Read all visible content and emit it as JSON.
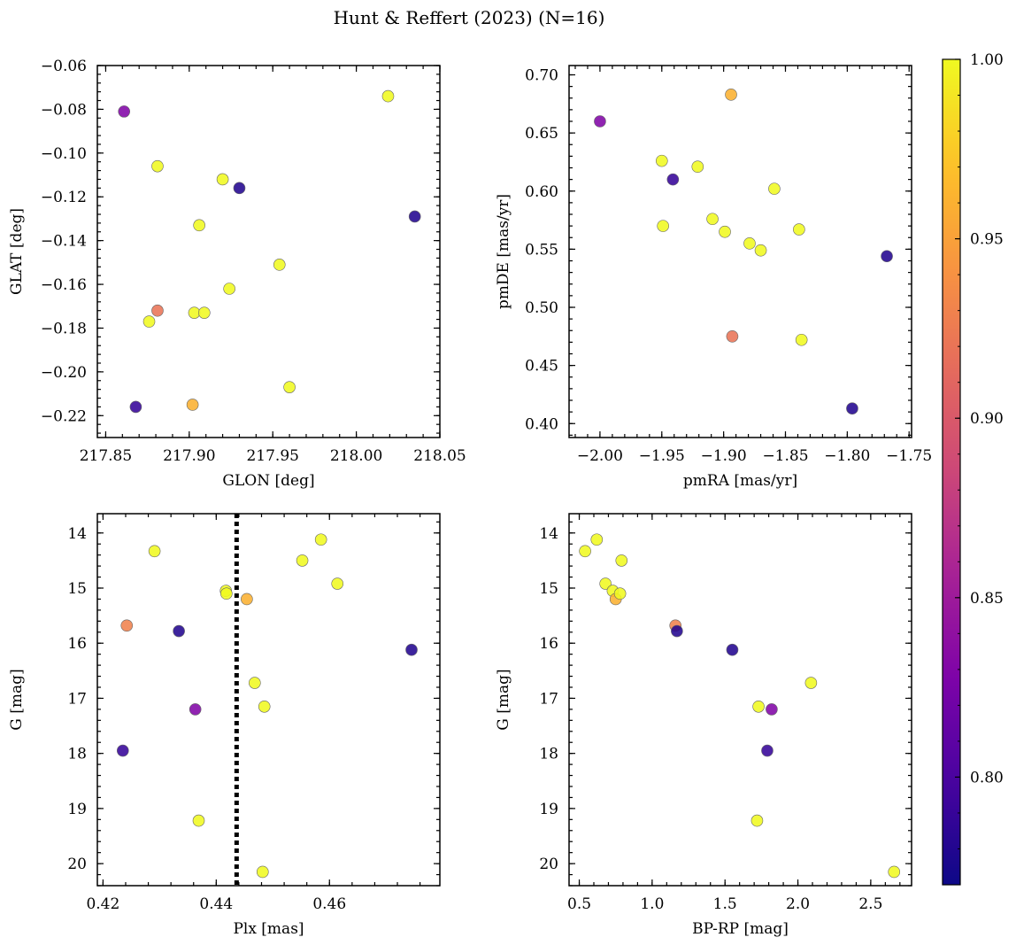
{
  "title": "Hunt & Reffert (2023) (N=16)",
  "colorbar": {
    "range": [
      0.77,
      1.0
    ],
    "ticks": [
      "1.00",
      "0.95",
      "0.90",
      "0.85",
      "0.80"
    ],
    "tick_values": [
      1.0,
      0.95,
      0.9,
      0.85,
      0.8
    ],
    "colormap": "plasma"
  },
  "chart_data": [
    {
      "type": "scatter",
      "xlabel": "GLON [deg]",
      "ylabel": "GLAT [deg]",
      "xlim": [
        217.845,
        218.05
      ],
      "ylim": [
        -0.23,
        -0.06
      ],
      "yinvert": false,
      "xticks": [
        217.85,
        217.9,
        217.95,
        218.0,
        218.05
      ],
      "xtick_labels": [
        "217.85",
        "217.90",
        "217.95",
        "218.00",
        "218.05"
      ],
      "yticks": [
        -0.22,
        -0.2,
        -0.18,
        -0.16,
        -0.14,
        -0.12,
        -0.1,
        -0.08,
        -0.06
      ],
      "ytick_labels": [
        "−0.22",
        "−0.20",
        "−0.18",
        "−0.16",
        "−0.14",
        "−0.12",
        "−0.10",
        "−0.08",
        "−0.06"
      ],
      "x": [
        217.861,
        217.868,
        217.876,
        217.881,
        217.881,
        217.902,
        217.903,
        217.906,
        217.909,
        217.92,
        217.924,
        217.93,
        217.954,
        217.96,
        218.019,
        218.035
      ],
      "y": [
        -0.081,
        -0.216,
        -0.177,
        -0.106,
        -0.172,
        -0.215,
        -0.173,
        -0.133,
        -0.173,
        -0.112,
        -0.162,
        -0.116,
        -0.151,
        -0.207,
        -0.074,
        -0.129
      ],
      "c": [
        0.83,
        0.79,
        1.0,
        1.0,
        0.92,
        0.96,
        1.0,
        1.0,
        1.0,
        1.0,
        1.0,
        0.78,
        1.0,
        1.0,
        1.0,
        0.78
      ]
    },
    {
      "type": "scatter",
      "xlabel": "pmRA [mas/yr]",
      "ylabel": "pmDE [mas/yr]",
      "xlim": [
        -2.025,
        -1.748
      ],
      "ylim": [
        0.388,
        0.708
      ],
      "yinvert": false,
      "xticks": [
        -2.0,
        -1.95,
        -1.9,
        -1.85,
        -1.8,
        -1.75
      ],
      "xtick_labels": [
        "−2.00",
        "−1.95",
        "−1.90",
        "−1.85",
        "−1.80",
        "−1.75"
      ],
      "yticks": [
        0.4,
        0.45,
        0.5,
        0.55,
        0.6,
        0.65,
        0.7
      ],
      "ytick_labels": [
        "0.40",
        "0.45",
        "0.50",
        "0.55",
        "0.60",
        "0.65",
        "0.70"
      ],
      "x": [
        -2.0,
        -1.95,
        -1.949,
        -1.941,
        -1.921,
        -1.909,
        -1.899,
        -1.894,
        -1.893,
        -1.879,
        -1.87,
        -1.859,
        -1.839,
        -1.837,
        -1.796,
        -1.768
      ],
      "y": [
        0.66,
        0.626,
        0.57,
        0.61,
        0.621,
        0.576,
        0.565,
        0.683,
        0.475,
        0.555,
        0.549,
        0.602,
        0.567,
        0.472,
        0.413,
        0.544
      ],
      "c": [
        0.83,
        1.0,
        1.0,
        0.79,
        1.0,
        1.0,
        1.0,
        0.96,
        0.92,
        1.0,
        1.0,
        1.0,
        1.0,
        1.0,
        0.78,
        0.78
      ]
    },
    {
      "type": "scatter",
      "xlabel": "Plx [mas]",
      "ylabel": "G [mag]",
      "xlim": [
        0.419,
        0.4795
      ],
      "ylim": [
        13.65,
        20.4
      ],
      "yinvert": true,
      "xticks": [
        0.42,
        0.44,
        0.46
      ],
      "xtick_labels": [
        "0.42",
        "0.44",
        "0.46"
      ],
      "yticks": [
        14,
        15,
        16,
        17,
        18,
        19,
        20
      ],
      "ytick_labels": [
        "14",
        "15",
        "16",
        "17",
        "18",
        "19",
        "20"
      ],
      "vline": 0.4436,
      "x": [
        0.4235,
        0.4242,
        0.4291,
        0.4334,
        0.4363,
        0.4369,
        0.4417,
        0.4418,
        0.4454,
        0.4468,
        0.4485,
        0.4482,
        0.4552,
        0.4585,
        0.4614,
        0.4745
      ],
      "y": [
        17.95,
        15.68,
        14.33,
        15.78,
        17.2,
        19.22,
        15.05,
        15.1,
        15.2,
        16.72,
        17.15,
        20.15,
        14.5,
        14.12,
        14.92,
        16.12
      ],
      "c": [
        0.79,
        0.93,
        1.0,
        0.78,
        0.83,
        1.0,
        1.0,
        1.0,
        0.96,
        1.0,
        1.0,
        1.0,
        1.0,
        1.0,
        1.0,
        0.78
      ]
    },
    {
      "type": "scatter",
      "xlabel": "BP-RP [mag]",
      "ylabel": "G [mag]",
      "xlim": [
        0.43,
        2.78
      ],
      "ylim": [
        13.65,
        20.4
      ],
      "yinvert": true,
      "xticks": [
        0.5,
        1.0,
        1.5,
        2.0,
        2.5
      ],
      "xtick_labels": [
        "0.5",
        "1.0",
        "1.5",
        "2.0",
        "2.5"
      ],
      "yticks": [
        14,
        15,
        16,
        17,
        18,
        19,
        20
      ],
      "ytick_labels": [
        "14",
        "15",
        "16",
        "17",
        "18",
        "19",
        "20"
      ],
      "x": [
        0.54,
        0.62,
        0.68,
        0.73,
        0.75,
        0.78,
        0.79,
        1.16,
        1.17,
        1.55,
        1.73,
        1.72,
        1.79,
        1.82,
        2.09,
        2.66
      ],
      "y": [
        14.33,
        14.12,
        14.92,
        15.05,
        15.2,
        15.1,
        14.5,
        15.68,
        15.78,
        16.12,
        17.15,
        19.22,
        17.95,
        17.2,
        16.72,
        20.15
      ],
      "c": [
        1.0,
        1.0,
        1.0,
        1.0,
        0.96,
        1.0,
        1.0,
        0.93,
        0.78,
        0.78,
        1.0,
        1.0,
        0.79,
        0.83,
        1.0,
        1.0
      ]
    }
  ]
}
